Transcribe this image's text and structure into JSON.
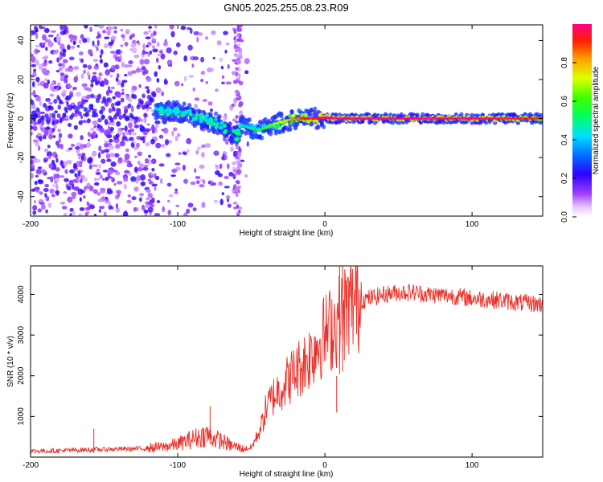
{
  "title": "GN05.2025.255.08.23.R09",
  "chart_data": [
    {
      "type": "heatmap",
      "title": "GN05.2025.255.08.23.R09",
      "xlabel": "Height of straight line (km)",
      "ylabel": "Frequency (Hz)",
      "xlim": [
        -200,
        148
      ],
      "ylim": [
        -50,
        48
      ],
      "xticks": [
        -200,
        -100,
        0,
        100
      ],
      "yticks": [
        -40,
        -20,
        0,
        20,
        40
      ],
      "colorbar": {
        "label": "Normalized spectral amplitude",
        "range": [
          0.0,
          1.0
        ],
        "ticks": [
          0.0,
          0.2,
          0.4,
          0.6,
          0.8
        ],
        "tick_labels": [
          "0.0",
          "0.2",
          "0.4",
          "0.6",
          "0.8"
        ]
      },
      "ridge_track": {
        "x": [
          -115,
          -105,
          -95,
          -85,
          -75,
          -65,
          -60,
          -57,
          -50,
          -45,
          -40,
          -35,
          -30,
          -25,
          -20,
          -15,
          -10,
          -5,
          0,
          10,
          50,
          100,
          148
        ],
        "frequency": [
          5,
          4,
          3,
          0,
          -2,
          -6,
          -10,
          -3,
          -5,
          -6,
          -5,
          -3,
          -2,
          -1,
          0,
          0,
          0,
          0,
          0.5,
          0,
          0,
          0,
          0
        ],
        "amplitude": [
          0.45,
          0.42,
          0.38,
          0.35,
          0.3,
          0.28,
          0.3,
          0.4,
          0.5,
          0.55,
          0.6,
          0.65,
          0.7,
          0.78,
          0.85,
          0.9,
          0.92,
          0.95,
          1.0,
          1.0,
          1.0,
          1.0,
          0.9
        ]
      },
      "noise_region_x": [
        -200,
        -60
      ]
    },
    {
      "type": "line",
      "xlabel": "Height of straight line (km)",
      "ylabel": "SNR (10 * v/v)",
      "xlim": [
        -200,
        148
      ],
      "ylim": [
        0,
        4700
      ],
      "xticks": [
        -200,
        -100,
        0,
        100
      ],
      "yticks": [
        1000,
        2000,
        3000,
        4000
      ],
      "series": [
        {
          "name": "SNR",
          "color": "#e8302a",
          "x": [
            -200,
            -190,
            -180,
            -170,
            -160,
            -150,
            -140,
            -130,
            -120,
            -110,
            -100,
            -95,
            -90,
            -85,
            -80,
            -75,
            -70,
            -65,
            -60,
            -55,
            -50,
            -45,
            -42,
            -40,
            -35,
            -30,
            -25,
            -20,
            -15,
            -10,
            -5,
            0,
            5,
            10,
            15,
            20,
            25,
            30,
            40,
            50,
            60,
            70,
            80,
            90,
            100,
            110,
            120,
            130,
            140,
            148
          ],
          "y": [
            150,
            150,
            160,
            170,
            180,
            190,
            200,
            200,
            220,
            250,
            320,
            380,
            450,
            500,
            560,
            450,
            400,
            300,
            250,
            200,
            230,
            600,
            900,
            1200,
            1500,
            1700,
            1900,
            2100,
            2300,
            2500,
            2800,
            3000,
            3200,
            3400,
            3650,
            3800,
            3850,
            3900,
            4000,
            4050,
            4050,
            4000,
            3980,
            3950,
            3900,
            3880,
            3850,
            3800,
            3780,
            3750
          ],
          "spikes": [
            {
              "x": -157,
              "y": 700
            },
            {
              "x": -78,
              "y": 1250
            },
            {
              "x": 8,
              "y": 1100
            },
            {
              "x": 10,
              "y": 4700
            },
            {
              "x": 12,
              "y": 4700
            }
          ]
        }
      ]
    }
  ]
}
